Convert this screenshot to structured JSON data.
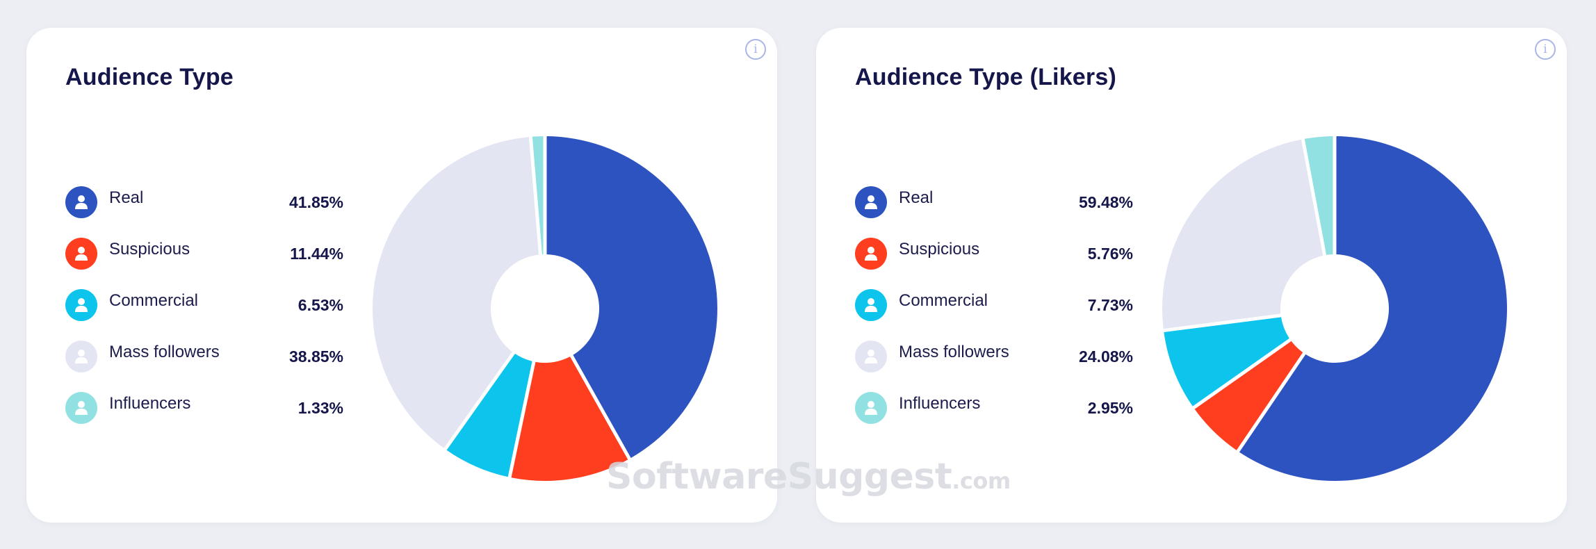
{
  "watermark": {
    "brand": "SoftwareSuggest",
    "domain": ".com"
  },
  "info_icon_glyph": "i",
  "chart_data": [
    {
      "type": "pie",
      "title": "Audience Type",
      "donut": true,
      "legend_position": "left",
      "categories": [
        "Real",
        "Suspicious",
        "Commercial",
        "Mass followers",
        "Influencers"
      ],
      "values": [
        41.85,
        11.44,
        6.53,
        38.85,
        1.33
      ],
      "value_labels": [
        "41.85%",
        "11.44%",
        "6.53%",
        "38.85%",
        "1.33%"
      ],
      "colors": [
        "#2c53c0",
        "#ff3d1f",
        "#0cc4ec",
        "#e3e5f2",
        "#92e1e2"
      ],
      "icon_name": "person-icon"
    },
    {
      "type": "pie",
      "title": "Audience Type (Likers)",
      "donut": true,
      "legend_position": "left",
      "categories": [
        "Real",
        "Suspicious",
        "Commercial",
        "Mass followers",
        "Influencers"
      ],
      "values": [
        59.48,
        5.76,
        7.73,
        24.08,
        2.95
      ],
      "value_labels": [
        "59.48%",
        "5.76%",
        "7.73%",
        "24.08%",
        "2.95%"
      ],
      "colors": [
        "#2c53c0",
        "#ff3d1f",
        "#0cc4ec",
        "#e3e5f2",
        "#92e1e2"
      ],
      "icon_name": "person-icon"
    }
  ]
}
